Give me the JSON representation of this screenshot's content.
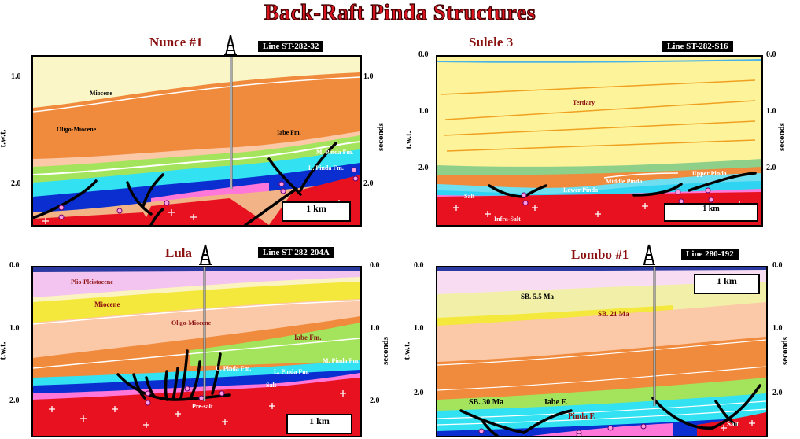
{
  "title": "Back-Raft Pinda Structures",
  "panels": {
    "nunce": {
      "well_name": "Nunce #1",
      "line": "Line ST-282-32",
      "ticks_left": [
        "1.0",
        "2.0"
      ],
      "ticks_right": [
        "1.0",
        "2.0"
      ],
      "axis_left": "t.w.t.",
      "axis_right": "seconds",
      "scale": "1 km",
      "units": {
        "miocene": "Miocene",
        "oligo_miocene": "Oligo-Miocene",
        "iabe": "Iabe Fm.",
        "m_pinda": "M. Pinda Fm.",
        "l_pinda": "L. Pinda Fm."
      }
    },
    "sulele": {
      "well_name": "Sulele 3",
      "line": "Line ST-282-S16",
      "ticks_left": [
        "0.0",
        "1.0",
        "2.0"
      ],
      "ticks_right": [
        "0.0",
        "1.0",
        "2.0"
      ],
      "axis_left": "t.w.t.",
      "axis_right": "seconds",
      "scale": "1 km",
      "units": {
        "tertiary": "Tertiary",
        "upper_pinda": "Upper Pinda",
        "middle_pinda": "Middle Pinda",
        "lower_pinda": "Lower Pinda",
        "salt": "Salt",
        "infra_salt": "Infra-Salt"
      }
    },
    "lula": {
      "well_name": "Lula",
      "line": "Line ST-282-204A",
      "ticks_left": [
        "0.0",
        "1.0",
        "2.0"
      ],
      "ticks_right": [
        "0.0",
        "1.0",
        "2.0"
      ],
      "axis_left": "t.w.t.",
      "axis_right": "seconds",
      "scale": "1 km",
      "units": {
        "plio": "Plio-Pleistocene",
        "miocene": "Miocene",
        "oligo_miocene": "Oligo-Miocene",
        "iabe": "Iabe Fm.",
        "u_pinda": "U. Pinda Fm.",
        "l_pinda": "L. Pinda Fm.",
        "m_pinda": "M. Pinda Fm.",
        "salt": "Salt",
        "pre_salt": "Pre-salt"
      }
    },
    "lombo": {
      "well_name": "Lombo #1",
      "line": "Line 280-192",
      "ticks_left": [
        "0.0",
        "1.0",
        "2.0"
      ],
      "ticks_right": [
        "0.0",
        "1.0",
        "2.0"
      ],
      "axis_left": "t.w.t.",
      "axis_right": "seconds",
      "scale": "1 km",
      "units": {
        "sb55": "SB. 5.5 Ma",
        "sb21": "SB. 21 Ma",
        "sb30": "SB. 30 Ma",
        "iabe": "Iabe F.",
        "pinda": "Pinda F.",
        "salt": "Salt"
      }
    }
  }
}
